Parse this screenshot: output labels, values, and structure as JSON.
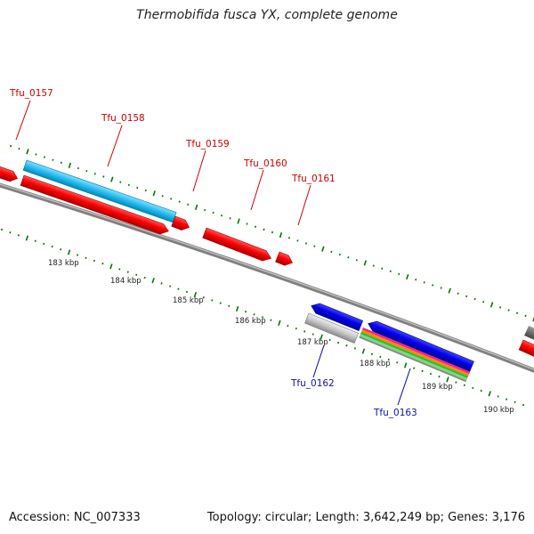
{
  "title": "Thermobifida fusca YX, complete genome",
  "footer": {
    "accession": "Accession: NC_007333",
    "summary": "Topology: circular; Length: 3,642,249 bp; Genes: 3,176"
  },
  "genes": {
    "tfu_0157": "Tfu_0157",
    "tfu_0158": "Tfu_0158",
    "tfu_0159": "Tfu_0159",
    "tfu_0160": "Tfu_0160",
    "tfu_0161": "Tfu_0161",
    "tfu_0162": "Tfu_0162",
    "tfu_0163": "Tfu_0163"
  },
  "scale": {
    "k183": "183 kbp",
    "k184": "184 kbp",
    "k185": "185 kbp",
    "k186": "186 kbp",
    "k187": "187 kbp",
    "k188": "188 kbp",
    "k189": "189 kbp",
    "k190": "190 kbp"
  },
  "colors": {
    "forward_cds": "#ff0000",
    "reverse_cds": "#0000ee",
    "forward_feature": "#22bbee",
    "reverse_feature": "#bbbbbb",
    "backbone": "#808080",
    "tick": "#007700"
  }
}
